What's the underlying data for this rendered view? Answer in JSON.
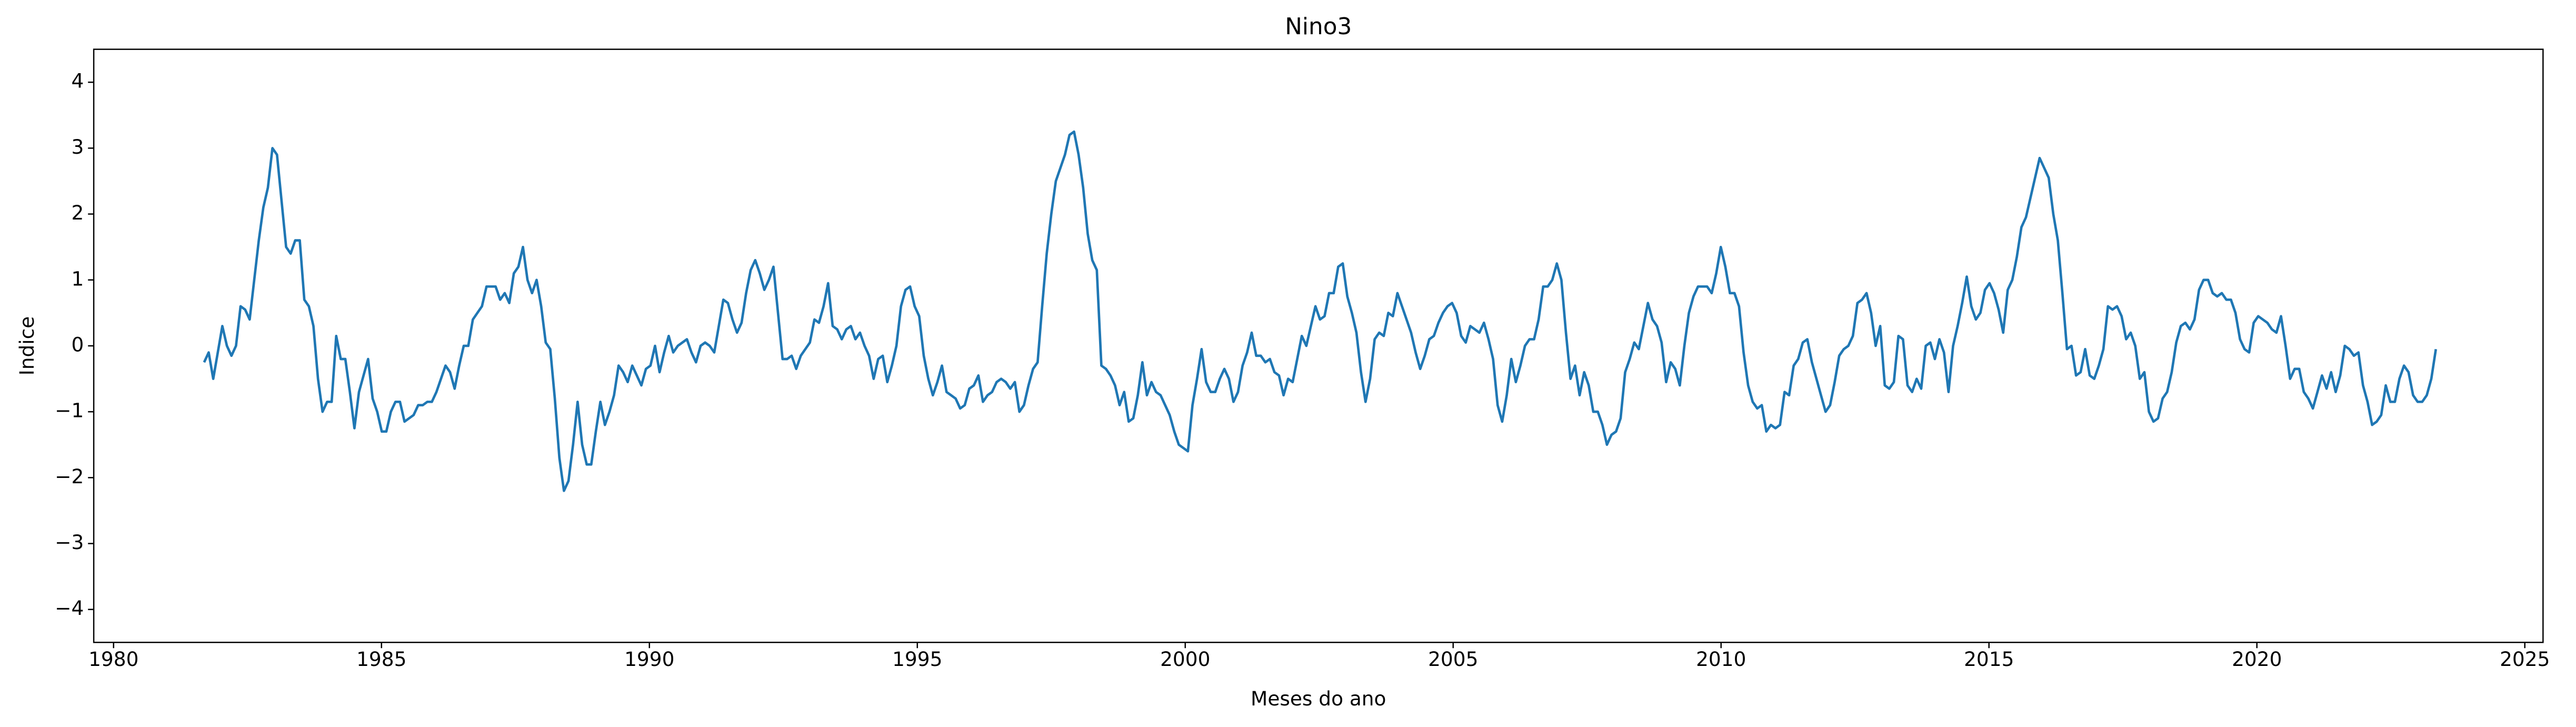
{
  "chart_data": {
    "type": "line",
    "title": "Nino3",
    "xlabel": "Meses do ano",
    "ylabel": "Indice",
    "color": "#1f77b4",
    "xlim": [
      1979.63,
      2025.34
    ],
    "ylim": [
      -4.5,
      4.5
    ],
    "xticks": [
      1980,
      1985,
      1990,
      1995,
      2000,
      2005,
      2010,
      2015,
      2020,
      2025
    ],
    "yticks": [
      {
        "value": -4,
        "label": "−4"
      },
      {
        "value": -3,
        "label": "−3"
      },
      {
        "value": -2,
        "label": "−2"
      },
      {
        "value": -1,
        "label": "−1"
      },
      0,
      1,
      2,
      3,
      4
    ],
    "x": [
      1981.69,
      1981.775,
      1981.86,
      1981.945,
      1982.03,
      1982.115,
      1982.2,
      1982.285,
      1982.37,
      1982.455,
      1982.54,
      1982.625,
      1982.71,
      1982.795,
      1982.88,
      1982.965,
      1983.05,
      1983.135,
      1983.22,
      1983.305,
      1983.39,
      1983.475,
      1983.56,
      1983.645,
      1983.73,
      1983.815,
      1983.9,
      1983.985,
      1984.07,
      1984.155,
      1984.24,
      1984.325,
      1984.41,
      1984.495,
      1984.58,
      1984.665,
      1984.75,
      1984.835,
      1984.92,
      1985.005,
      1985.09,
      1985.175,
      1985.26,
      1985.345,
      1985.43,
      1985.515,
      1985.6,
      1985.685,
      1985.77,
      1985.855,
      1985.94,
      1986.025,
      1986.11,
      1986.195,
      1986.28,
      1986.365,
      1986.45,
      1986.535,
      1986.62,
      1986.705,
      1986.79,
      1986.875,
      1986.96,
      1987.045,
      1987.13,
      1987.215,
      1987.3,
      1987.385,
      1987.47,
      1987.555,
      1987.64,
      1987.725,
      1987.81,
      1987.895,
      1987.98,
      1988.065,
      1988.15,
      1988.235,
      1988.32,
      1988.405,
      1988.49,
      1988.575,
      1988.66,
      1988.745,
      1988.83,
      1988.915,
      1989,
      1989.085,
      1989.17,
      1989.255,
      1989.34,
      1989.425,
      1989.51,
      1989.595,
      1989.68,
      1989.765,
      1989.85,
      1989.935,
      1990.02,
      1990.105,
      1990.19,
      1990.275,
      1990.36,
      1990.445,
      1990.53,
      1990.615,
      1990.7,
      1990.785,
      1990.87,
      1990.955,
      1991.04,
      1991.125,
      1991.21,
      1991.295,
      1991.38,
      1991.465,
      1991.55,
      1991.635,
      1991.72,
      1991.805,
      1991.89,
      1991.975,
      1992.06,
      1992.145,
      1992.23,
      1992.315,
      1992.4,
      1992.485,
      1992.57,
      1992.655,
      1992.74,
      1992.825,
      1992.91,
      1992.995,
      1993.08,
      1993.165,
      1993.25,
      1993.335,
      1993.42,
      1993.505,
      1993.59,
      1993.675,
      1993.76,
      1993.845,
      1993.93,
      1994.015,
      1994.1,
      1994.185,
      1994.27,
      1994.355,
      1994.44,
      1994.525,
      1994.61,
      1994.695,
      1994.78,
      1994.865,
      1994.95,
      1995.035,
      1995.12,
      1995.205,
      1995.29,
      1995.375,
      1995.46,
      1995.545,
      1995.63,
      1995.715,
      1995.8,
      1995.885,
      1995.97,
      1996.055,
      1996.14,
      1996.225,
      1996.31,
      1996.395,
      1996.48,
      1996.565,
      1996.65,
      1996.735,
      1996.82,
      1996.905,
      1996.99,
      1997.075,
      1997.16,
      1997.245,
      1997.33,
      1997.415,
      1997.5,
      1997.585,
      1997.67,
      1997.755,
      1997.84,
      1997.925,
      1998.01,
      1998.095,
      1998.18,
      1998.265,
      1998.35,
      1998.435,
      1998.52,
      1998.605,
      1998.69,
      1998.775,
      1998.86,
      1998.945,
      1999.03,
      1999.115,
      1999.2,
      1999.285,
      1999.37,
      1999.455,
      1999.54,
      1999.625,
      1999.71,
      1999.795,
      1999.88,
      1999.965,
      2000.05,
      2000.135,
      2000.22,
      2000.305,
      2000.39,
      2000.475,
      2000.56,
      2000.645,
      2000.73,
      2000.815,
      2000.9,
      2000.985,
      2001.07,
      2001.155,
      2001.24,
      2001.325,
      2001.41,
      2001.495,
      2001.58,
      2001.665,
      2001.75,
      2001.835,
      2001.92,
      2002.005,
      2002.09,
      2002.175,
      2002.26,
      2002.345,
      2002.43,
      2002.515,
      2002.6,
      2002.685,
      2002.77,
      2002.855,
      2002.94,
      2003.025,
      2003.11,
      2003.195,
      2003.28,
      2003.365,
      2003.45,
      2003.535,
      2003.62,
      2003.705,
      2003.79,
      2003.875,
      2003.96,
      2004.045,
      2004.13,
      2004.215,
      2004.3,
      2004.385,
      2004.47,
      2004.555,
      2004.64,
      2004.725,
      2004.81,
      2004.895,
      2004.98,
      2005.065,
      2005.15,
      2005.235,
      2005.32,
      2005.405,
      2005.49,
      2005.575,
      2005.66,
      2005.745,
      2005.83,
      2005.915,
      2006,
      2006.085,
      2006.17,
      2006.255,
      2006.34,
      2006.425,
      2006.51,
      2006.595,
      2006.68,
      2006.765,
      2006.85,
      2006.935,
      2007.02,
      2007.105,
      2007.19,
      2007.275,
      2007.36,
      2007.445,
      2007.53,
      2007.615,
      2007.7,
      2007.785,
      2007.87,
      2007.955,
      2008.04,
      2008.125,
      2008.21,
      2008.295,
      2008.38,
      2008.465,
      2008.55,
      2008.635,
      2008.72,
      2008.805,
      2008.89,
      2008.975,
      2009.06,
      2009.145,
      2009.23,
      2009.315,
      2009.4,
      2009.485,
      2009.57,
      2009.655,
      2009.74,
      2009.825,
      2009.91,
      2009.995,
      2010.08,
      2010.165,
      2010.25,
      2010.335,
      2010.42,
      2010.505,
      2010.59,
      2010.675,
      2010.76,
      2010.845,
      2010.93,
      2011.015,
      2011.1,
      2011.185,
      2011.27,
      2011.355,
      2011.44,
      2011.525,
      2011.61,
      2011.695,
      2011.78,
      2011.865,
      2011.95,
      2012.035,
      2012.12,
      2012.205,
      2012.29,
      2012.375,
      2012.46,
      2012.545,
      2012.63,
      2012.715,
      2012.8,
      2012.885,
      2012.97,
      2013.055,
      2013.14,
      2013.225,
      2013.31,
      2013.395,
      2013.48,
      2013.565,
      2013.65,
      2013.735,
      2013.82,
      2013.905,
      2013.99,
      2014.075,
      2014.16,
      2014.245,
      2014.33,
      2014.415,
      2014.5,
      2014.585,
      2014.67,
      2014.755,
      2014.84,
      2014.925,
      2015.01,
      2015.095,
      2015.18,
      2015.265,
      2015.35,
      2015.435,
      2015.52,
      2015.605,
      2015.69,
      2015.775,
      2015.86,
      2015.945,
      2016.03,
      2016.115,
      2016.2,
      2016.285,
      2016.37,
      2016.455,
      2016.54,
      2016.625,
      2016.71,
      2016.795,
      2016.88,
      2016.965,
      2017.05,
      2017.135,
      2017.22,
      2017.305,
      2017.39,
      2017.475,
      2017.56,
      2017.645,
      2017.73,
      2017.815,
      2017.9,
      2017.985,
      2018.07,
      2018.155,
      2018.24,
      2018.325,
      2018.41,
      2018.495,
      2018.58,
      2018.665,
      2018.75,
      2018.835,
      2018.92,
      2019.005,
      2019.09,
      2019.175,
      2019.26,
      2019.345,
      2019.43,
      2019.515,
      2019.6,
      2019.685,
      2019.77,
      2019.855,
      2019.94,
      2020.025,
      2020.11,
      2020.195,
      2020.28,
      2020.365,
      2020.45,
      2020.535,
      2020.62,
      2020.705,
      2020.79,
      2020.875,
      2020.96,
      2021.045,
      2021.13,
      2021.215,
      2021.3,
      2021.385,
      2021.47,
      2021.555,
      2021.64,
      2021.725,
      2021.81,
      2021.895,
      2021.98,
      2022.065,
      2022.15,
      2022.235,
      2022.32,
      2022.405,
      2022.49,
      2022.575,
      2022.66,
      2022.745,
      2022.83,
      2022.915,
      2023,
      2023.085,
      2023.17,
      2023.255,
      2023.34
    ],
    "values": [
      -0.25,
      -0.1,
      -0.5,
      -0.1,
      0.3,
      0.0,
      -0.15,
      0.0,
      0.6,
      0.55,
      0.4,
      1.0,
      1.6,
      2.1,
      2.4,
      3.0,
      2.9,
      2.2,
      1.5,
      1.4,
      1.6,
      1.6,
      0.7,
      0.6,
      0.3,
      -0.5,
      -1.0,
      -0.85,
      -0.85,
      0.15,
      -0.2,
      -0.2,
      -0.7,
      -1.25,
      -0.7,
      -0.45,
      -0.2,
      -0.8,
      -1.0,
      -1.3,
      -1.3,
      -1.0,
      -0.85,
      -0.85,
      -1.15,
      -1.1,
      -1.05,
      -0.9,
      -0.9,
      -0.85,
      -0.85,
      -0.7,
      -0.5,
      -0.3,
      -0.4,
      -0.65,
      -0.3,
      0.0,
      0.0,
      0.4,
      0.5,
      0.6,
      0.9,
      0.9,
      0.9,
      0.7,
      0.8,
      0.65,
      1.1,
      1.2,
      1.5,
      1.0,
      0.8,
      1.0,
      0.6,
      0.05,
      -0.05,
      -0.8,
      -1.7,
      -2.2,
      -2.05,
      -1.5,
      -0.85,
      -1.5,
      -1.8,
      -1.8,
      -1.3,
      -0.85,
      -1.2,
      -1.0,
      -0.75,
      -0.3,
      -0.4,
      -0.55,
      -0.3,
      -0.45,
      -0.6,
      -0.35,
      -0.3,
      0.0,
      -0.4,
      -0.1,
      0.15,
      -0.1,
      0.0,
      0.05,
      0.1,
      -0.1,
      -0.25,
      0.0,
      0.05,
      0.0,
      -0.1,
      0.3,
      0.7,
      0.65,
      0.4,
      0.2,
      0.35,
      0.8,
      1.15,
      1.3,
      1.1,
      0.85,
      1.0,
      1.2,
      0.5,
      -0.2,
      -0.2,
      -0.15,
      -0.35,
      -0.15,
      -0.05,
      0.05,
      0.4,
      0.35,
      0.6,
      0.95,
      0.3,
      0.25,
      0.1,
      0.25,
      0.3,
      0.1,
      0.2,
      0.0,
      -0.15,
      -0.5,
      -0.2,
      -0.15,
      -0.55,
      -0.3,
      0.0,
      0.6,
      0.85,
      0.9,
      0.6,
      0.45,
      -0.15,
      -0.5,
      -0.75,
      -0.55,
      -0.3,
      -0.7,
      -0.75,
      -0.8,
      -0.95,
      -0.9,
      -0.65,
      -0.6,
      -0.45,
      -0.85,
      -0.75,
      -0.7,
      -0.55,
      -0.5,
      -0.55,
      -0.65,
      -0.55,
      -1.0,
      -0.9,
      -0.6,
      -0.35,
      -0.25,
      0.6,
      1.4,
      2.0,
      2.5,
      2.7,
      2.9,
      3.2,
      3.25,
      2.9,
      2.4,
      1.7,
      1.3,
      1.15,
      -0.3,
      -0.35,
      -0.45,
      -0.6,
      -0.9,
      -0.7,
      -1.15,
      -1.1,
      -0.75,
      -0.25,
      -0.75,
      -0.55,
      -0.7,
      -0.75,
      -0.9,
      -1.05,
      -1.3,
      -1.5,
      -1.55,
      -1.6,
      -0.9,
      -0.5,
      -0.05,
      -0.55,
      -0.7,
      -0.7,
      -0.5,
      -0.35,
      -0.5,
      -0.85,
      -0.7,
      -0.3,
      -0.1,
      0.2,
      -0.15,
      -0.15,
      -0.25,
      -0.2,
      -0.4,
      -0.45,
      -0.75,
      -0.5,
      -0.55,
      -0.2,
      0.15,
      0.0,
      0.3,
      0.6,
      0.4,
      0.45,
      0.8,
      0.8,
      1.2,
      1.25,
      0.75,
      0.5,
      0.2,
      -0.4,
      -0.85,
      -0.5,
      0.1,
      0.2,
      0.15,
      0.5,
      0.45,
      0.8,
      0.6,
      0.4,
      0.2,
      -0.1,
      -0.35,
      -0.15,
      0.1,
      0.15,
      0.35,
      0.5,
      0.6,
      0.65,
      0.5,
      0.15,
      0.05,
      0.3,
      0.25,
      0.2,
      0.35,
      0.1,
      -0.2,
      -0.9,
      -1.15,
      -0.75,
      -0.2,
      -0.55,
      -0.3,
      0.0,
      0.1,
      0.1,
      0.4,
      0.9,
      0.9,
      1.0,
      1.25,
      1.0,
      0.2,
      -0.5,
      -0.3,
      -0.75,
      -0.4,
      -0.6,
      -1.0,
      -1.0,
      -1.2,
      -1.5,
      -1.35,
      -1.3,
      -1.1,
      -0.4,
      -0.2,
      0.05,
      -0.05,
      0.3,
      0.65,
      0.4,
      0.3,
      0.05,
      -0.55,
      -0.25,
      -0.35,
      -0.6,
      0.0,
      0.5,
      0.75,
      0.9,
      0.9,
      0.9,
      0.8,
      1.1,
      1.5,
      1.2,
      0.8,
      0.8,
      0.6,
      -0.1,
      -0.6,
      -0.85,
      -0.95,
      -0.9,
      -1.3,
      -1.2,
      -1.25,
      -1.2,
      -0.7,
      -0.75,
      -0.3,
      -0.2,
      0.05,
      0.1,
      -0.25,
      -0.5,
      -0.75,
      -1.0,
      -0.9,
      -0.55,
      -0.15,
      -0.05,
      0.0,
      0.15,
      0.65,
      0.7,
      0.8,
      0.5,
      0.0,
      0.3,
      -0.6,
      -0.65,
      -0.55,
      0.15,
      0.1,
      -0.6,
      -0.7,
      -0.5,
      -0.65,
      0.0,
      0.05,
      -0.2,
      0.1,
      -0.1,
      -0.7,
      0.0,
      0.3,
      0.65,
      1.05,
      0.6,
      0.4,
      0.5,
      0.85,
      0.95,
      0.8,
      0.55,
      0.2,
      0.85,
      1.0,
      1.35,
      1.8,
      1.95,
      2.25,
      2.55,
      2.85,
      2.7,
      2.55,
      2.0,
      1.6,
      0.8,
      -0.05,
      0.0,
      -0.45,
      -0.4,
      -0.05,
      -0.45,
      -0.5,
      -0.3,
      -0.05,
      0.6,
      0.55,
      0.6,
      0.45,
      0.1,
      0.2,
      0.0,
      -0.5,
      -0.4,
      -1.0,
      -1.15,
      -1.1,
      -0.8,
      -0.7,
      -0.4,
      0.05,
      0.3,
      0.35,
      0.25,
      0.4,
      0.85,
      1.0,
      1.0,
      0.8,
      0.75,
      0.8,
      0.7,
      0.7,
      0.5,
      0.1,
      -0.05,
      -0.1,
      0.35,
      0.45,
      0.4,
      0.35,
      0.25,
      0.2,
      0.45,
      0.0,
      -0.5,
      -0.35,
      -0.35,
      -0.7,
      -0.8,
      -0.95,
      -0.7,
      -0.45,
      -0.65,
      -0.4,
      -0.7,
      -0.45,
      0.0,
      -0.05,
      -0.15,
      -0.1,
      -0.6,
      -0.85,
      -1.2,
      -1.15,
      -1.05,
      -0.6,
      -0.85,
      -0.85,
      -0.5,
      -0.3,
      -0.4,
      -0.75,
      -0.85,
      -0.85,
      -0.75,
      -0.5,
      -0.05
    ]
  }
}
